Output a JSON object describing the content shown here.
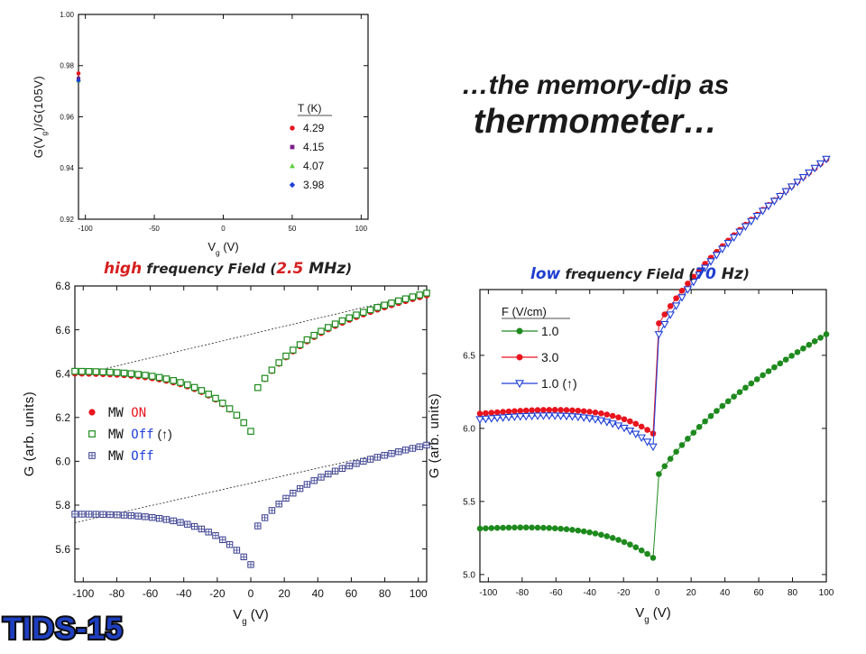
{
  "slide": {
    "title_line1": "…the memory-dip as",
    "title_line2": "thermometer…",
    "caption_left": {
      "part1": "high",
      "part2": " frequency Field (",
      "part3": "2.5",
      "part4": " MHz",
      "part5": ")"
    },
    "caption_right": {
      "part1": "low",
      "part2": " frequency Field (",
      "part3": "70",
      "part4": " Hz",
      "part5": ")"
    },
    "logo_text": "TIDS-15"
  },
  "colors": {
    "red": "#e8141e",
    "purple": "#7a1e8c",
    "green": "#1aa62e",
    "lightgreen": "#5ad13a",
    "blue": "#1f3fd6",
    "darkgreen": "#1e8a1e",
    "navy": "#3a3f8f",
    "accent_red": "#d51f20",
    "accent_blue": "#1f3fd0"
  },
  "chart_data": [
    {
      "type": "scatter",
      "title": "",
      "xlabel": "V",
      "xlabel_sub": "g",
      "xlabel_unit": " (V)",
      "ylabel": "G(V",
      "ylabel_sub": "g",
      "ylabel_tail": ")/G(105V)",
      "xlim": [
        -105,
        105
      ],
      "ylim": [
        0.92,
        1.0
      ],
      "xticks": [
        -100,
        -50,
        0,
        50,
        100
      ],
      "xticklabels": [
        "-100",
        "-50",
        "0",
        "50",
        "100"
      ],
      "yticks": [
        0.92,
        0.94,
        0.96,
        0.98,
        1.0
      ],
      "yticklabels": [
        "0.92",
        "0.94",
        "0.96",
        "0.98",
        "1.00"
      ],
      "legend_title": "T (K)",
      "legend_position": "right",
      "series": [
        {
          "name": "4.29",
          "marker": "circle",
          "color": "#e8141e",
          "base": 0.978,
          "dip": 0.023,
          "slope": 0.105,
          "width": 34
        },
        {
          "name": "4.15",
          "marker": "square",
          "color": "#7a1e8c",
          "base": 0.976,
          "dip": 0.034,
          "slope": 0.115,
          "width": 30
        },
        {
          "name": "4.07",
          "marker": "triangle",
          "color": "#5ad13a",
          "base": 0.975,
          "dip": 0.042,
          "slope": 0.12,
          "width": 28
        },
        {
          "name": "3.98",
          "marker": "diamond",
          "color": "#1f3fd6",
          "base": 0.975,
          "dip": 0.05,
          "slope": 0.12,
          "width": 25
        }
      ]
    },
    {
      "type": "scatter",
      "title": "",
      "xlabel": "V",
      "xlabel_sub": "g",
      "xlabel_unit": " (V)",
      "ylabel": "G (arb. units)",
      "xlim": [
        -105,
        105
      ],
      "ylim": [
        5.45,
        6.8
      ],
      "xticks": [
        -100,
        -80,
        -60,
        -40,
        -20,
        0,
        20,
        40,
        60,
        80,
        100
      ],
      "xticklabels": [
        "-100",
        "-80",
        "-60",
        "-40",
        "-20",
        "0",
        "20",
        "40",
        "60",
        "80",
        "100"
      ],
      "yticks": [
        5.6,
        5.8,
        6.0,
        6.2,
        6.4,
        6.6,
        6.8
      ],
      "yticklabels": [
        "5.6",
        "5.8",
        "6.0",
        "6.2",
        "6.4",
        "6.6",
        "6.8"
      ],
      "legend_position": "left",
      "legend": [
        {
          "label_a": "MW ",
          "label_b": "ON",
          "label_c": "",
          "marker": "circle",
          "color": "#e8141e"
        },
        {
          "label_a": "MW ",
          "label_b": "Off",
          "label_c": " (↑)",
          "marker": "square-open",
          "color": "#1e8a1e"
        },
        {
          "label_a": "MW ",
          "label_b": "Off",
          "label_c": "",
          "marker": "square-plus",
          "color": "#3a3f8f"
        }
      ],
      "series": [
        {
          "name": "MW ON",
          "marker": "circle",
          "color": "#e8141e",
          "base": 6.41,
          "dip": 0.3,
          "slope": 0.0017,
          "width": 30
        },
        {
          "name": "MW Off (↑)",
          "marker": "square-open",
          "color": "#1e8a1e",
          "base": 6.42,
          "dip": 0.31,
          "slope": 0.0017,
          "width": 30
        },
        {
          "name": "MW Off",
          "marker": "square-plus",
          "color": "#3a3f8f",
          "base": 5.765,
          "dip": 0.26,
          "slope": 0.0015,
          "width": 28
        }
      ],
      "guide_lines": [
        {
          "x": [
            -105,
            105
          ],
          "y": [
            6.39,
            6.77
          ]
        },
        {
          "x": [
            -105,
            105
          ],
          "y": [
            5.72,
            6.08
          ]
        }
      ]
    },
    {
      "type": "scatter",
      "title": "",
      "xlabel": "V",
      "xlabel_sub": "g",
      "xlabel_unit": " (V)",
      "ylabel": "G (arb. units)",
      "xlim": [
        -105,
        100
      ],
      "ylim": [
        4.95,
        6.95
      ],
      "xticks": [
        -100,
        -80,
        -60,
        -40,
        -20,
        0,
        20,
        40,
        60,
        80,
        100
      ],
      "xticklabels": [
        "-100",
        "-80",
        "-60",
        "-40",
        "-20",
        "0",
        "20",
        "40",
        "60",
        "80",
        "100"
      ],
      "yticks": [
        5.0,
        5.5,
        6.0,
        6.5
      ],
      "yticklabels": [
        "5.0",
        "5.5",
        "6.0",
        "6.5"
      ],
      "legend_title": "F (V/cm)",
      "legend_position": "top-left",
      "series": [
        {
          "name": "1.0",
          "marker": "circle",
          "color": "#1e8a1e",
          "base": 5.33,
          "dip": 0.34,
          "slope": 0.0065,
          "width": 34
        },
        {
          "name": "3.0",
          "marker": "circle",
          "color": "#e8141e",
          "base": 6.11,
          "dip": 0.3,
          "slope": 0.0085,
          "width": 30
        },
        {
          "name": "1.0 (↑)",
          "marker": "triangle-down-open",
          "color": "#1f3fd6",
          "base": 6.07,
          "dip": 0.36,
          "slope": 0.0087,
          "width": 28
        }
      ]
    }
  ]
}
